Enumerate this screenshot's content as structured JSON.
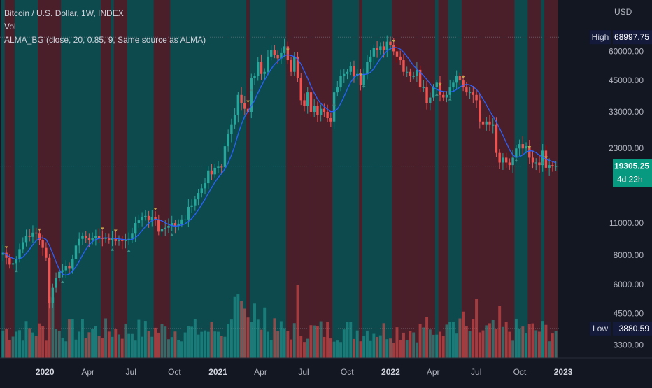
{
  "legend": {
    "title": "Bitcoin / U.S. Dollar, 1W, INDEX",
    "vol": "Vol",
    "alma": "ALMA_BG (close, 20, 0.85, 9, Same source as ALMA)"
  },
  "price_scale": {
    "currency": "USD"
  },
  "colors": {
    "background": "#131722",
    "up": "#26a69a",
    "down": "#ef5350",
    "bg_up": "#0d4a4e",
    "bg_down": "#4a1f2a",
    "alma_line": "#2962ff",
    "last_price_bg": "#089981",
    "label_bg": "#131a3a"
  },
  "chart_data": {
    "type": "candlestick",
    "title": "Bitcoin / U.S. Dollar, 1W, INDEX",
    "y_axis": {
      "scale": "log",
      "ylim": [
        2900,
        88000
      ],
      "ticks": [
        "60000.00",
        "45000.00",
        "33000.00",
        "23000.00",
        "11000.00",
        "8000.00",
        "6000.00",
        "4500.00",
        "3300.00"
      ]
    },
    "x_axis": {
      "range": [
        "2019-10",
        "2023-01"
      ],
      "ticks": [
        "2020",
        "Apr",
        "Jul",
        "Oct",
        "2021",
        "Apr",
        "Jul",
        "Oct",
        "2022",
        "Apr",
        "Jul",
        "Oct",
        "2023"
      ]
    },
    "markers": {
      "high": {
        "label": "High",
        "value": "68997.75"
      },
      "low": {
        "label": "Low",
        "value": "3880.59"
      },
      "last": {
        "value": "19305.25",
        "countdown": "4d 22h"
      }
    },
    "closes": [
      8200,
      7800,
      7300,
      7400,
      7700,
      8500,
      9100,
      9700,
      9600,
      10000,
      9900,
      9300,
      8600,
      7800,
      5000,
      5800,
      6400,
      6800,
      6900,
      7200,
      7000,
      7700,
      8800,
      9400,
      9700,
      9500,
      9300,
      9500,
      9700,
      9500,
      9400,
      9500,
      9300,
      9500,
      9200,
      9300,
      9200,
      9300,
      9400,
      9900,
      11000,
      11300,
      11700,
      11800,
      11300,
      11700,
      11400,
      10100,
      10400,
      10500,
      10700,
      11000,
      10700,
      10900,
      11400,
      11400,
      12900,
      13100,
      13900,
      14800,
      15500,
      16300,
      18500,
      17800,
      19000,
      19200,
      19100,
      23500,
      26500,
      29000,
      32000,
      39000,
      36000,
      34000,
      33000,
      46000,
      47000,
      54000,
      48000,
      49000,
      57000,
      61000,
      58000,
      56000,
      59000,
      63000,
      55000,
      49000,
      57000,
      46000,
      37000,
      35000,
      40000,
      33000,
      35000,
      32000,
      34000,
      33000,
      31000,
      30000,
      40000,
      42000,
      47000,
      48000,
      49000,
      52000,
      47000,
      48000,
      43000,
      48000,
      54000,
      57000,
      62000,
      61000,
      63000,
      61000,
      66000,
      64000,
      60000,
      57000,
      55000,
      49000,
      49000,
      47000,
      47000,
      50000,
      42000,
      42000,
      36000,
      38000,
      42000,
      44000,
      39000,
      38000,
      39000,
      42000,
      44000,
      47000,
      45000,
      42000,
      40000,
      40000,
      39000,
      37000,
      30000,
      29000,
      30000,
      29000,
      29000,
      22000,
      20000,
      21000,
      20000,
      19500,
      21000,
      23000,
      24000,
      23000,
      23500,
      21000,
      20000,
      20000,
      19500,
      22500,
      19000,
      19500,
      19300,
      19300
    ],
    "alma": {
      "name": "ALMA_BG (close, 20, 0.85, 9, Same source as ALMA)",
      "length": 20,
      "offset": 0.85,
      "sigma": 9
    },
    "series": [
      {
        "name": "Vol"
      }
    ],
    "grid": false
  }
}
